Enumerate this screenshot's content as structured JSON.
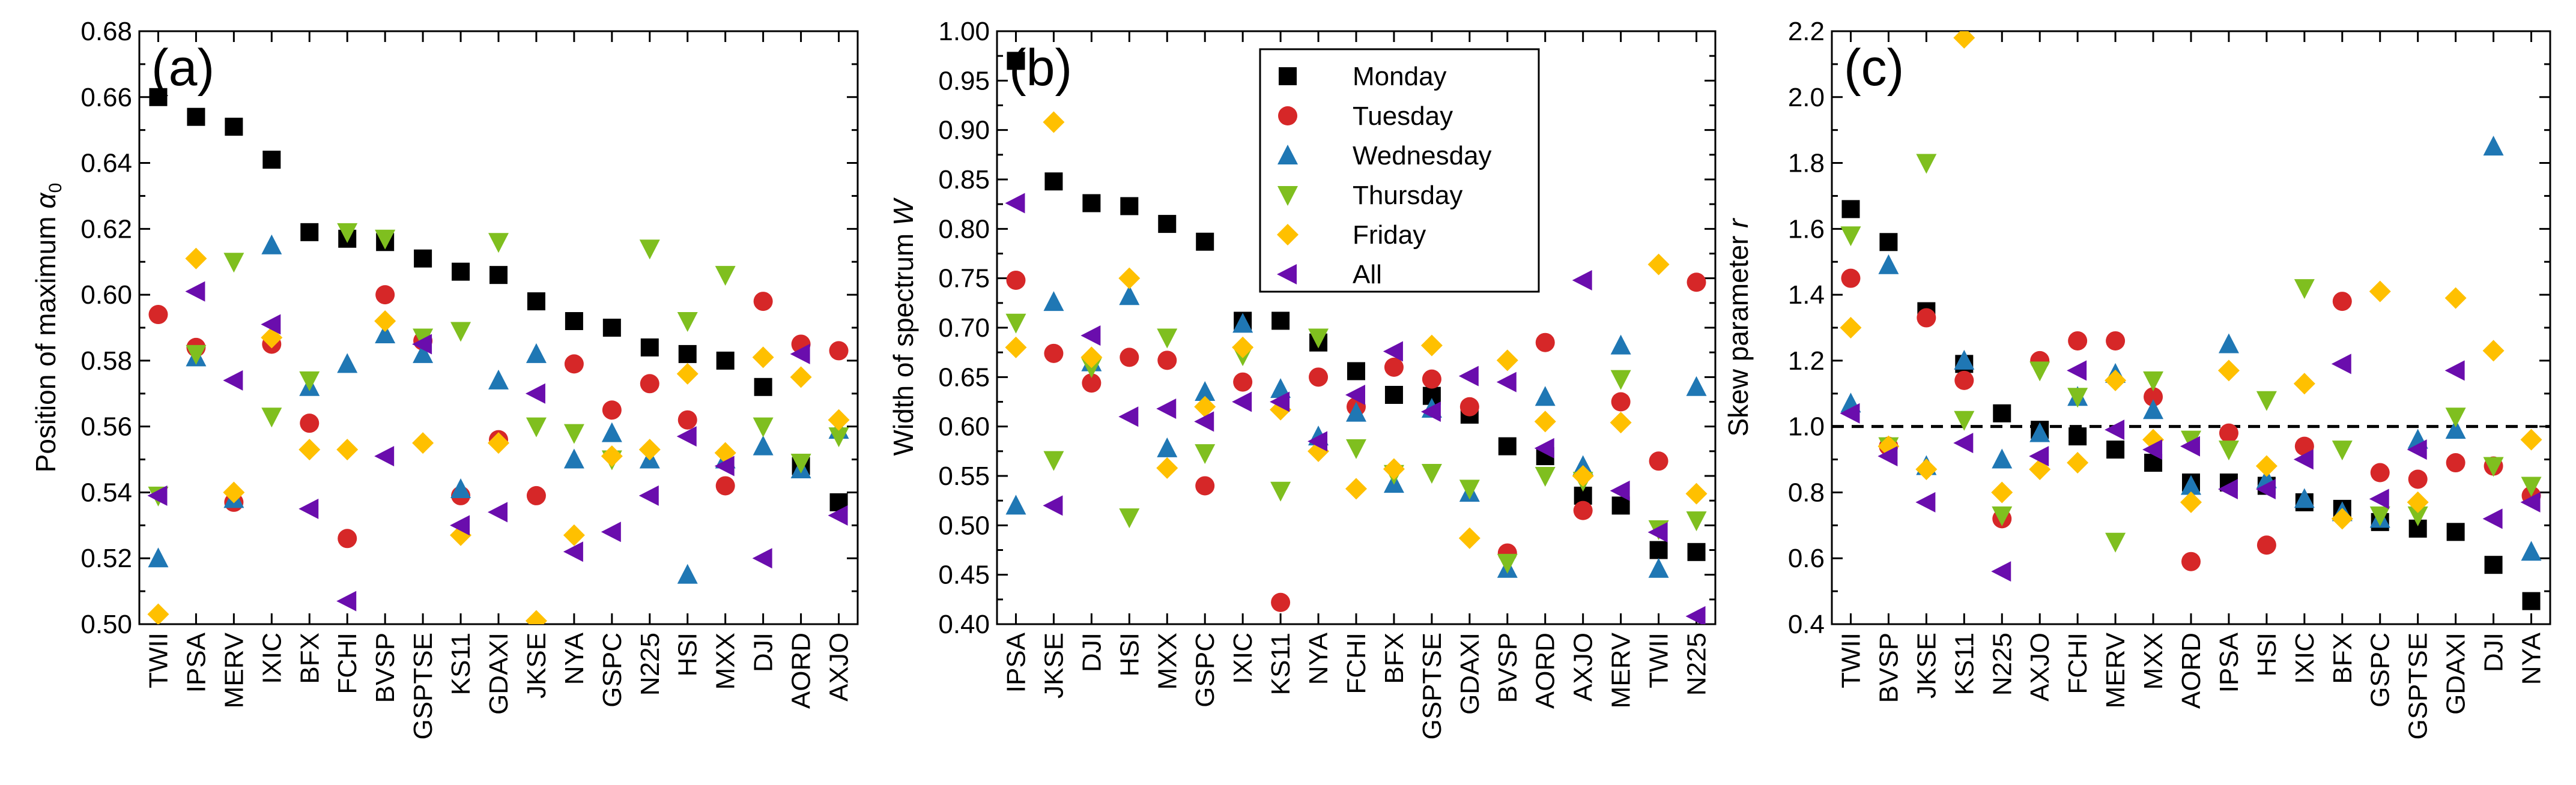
{
  "series_styles": [
    {
      "name": "Monday",
      "color": "#000000",
      "marker": "square"
    },
    {
      "name": "Tuesday",
      "color": "#d62728",
      "marker": "circle"
    },
    {
      "name": "Wednesday",
      "color": "#1f77b4",
      "marker": "triangle-up"
    },
    {
      "name": "Thursday",
      "color": "#7fbf1f",
      "marker": "triangle-down"
    },
    {
      "name": "Friday",
      "color": "#ffc000",
      "marker": "diamond"
    },
    {
      "name": "All",
      "color": "#6a0dad",
      "marker": "triangle-left"
    }
  ],
  "chart_data": [
    {
      "type": "scatter",
      "panel_label": "(a)",
      "ylabel_main": "Position of maximum ",
      "ylabel_symbol": "α",
      "ylabel_sub": "0",
      "ylim": [
        0.5,
        0.68
      ],
      "yticks": [
        0.5,
        0.52,
        0.54,
        0.56,
        0.58,
        0.6,
        0.62,
        0.64,
        0.66,
        0.68
      ],
      "tick_decimals": 2,
      "categories": [
        "TWII",
        "IPSA",
        "MERV",
        "IXIC",
        "BFX",
        "FCHI",
        "BVSP",
        "GSPTSE",
        "KS11",
        "GDAXI",
        "JKSE",
        "NYA",
        "GSPC",
        "N225",
        "HSI",
        "MXX",
        "DJI",
        "AORD",
        "AXJO"
      ],
      "series": [
        {
          "name": "Monday",
          "values": [
            0.66,
            0.654,
            0.651,
            0.641,
            0.619,
            0.617,
            0.616,
            0.611,
            0.607,
            0.606,
            0.598,
            0.592,
            0.59,
            0.584,
            0.582,
            0.58,
            0.572,
            0.548,
            0.537
          ]
        },
        {
          "name": "Tuesday",
          "values": [
            0.594,
            0.584,
            0.537,
            0.585,
            0.561,
            0.526,
            0.6,
            0.586,
            0.539,
            0.556,
            0.539,
            0.579,
            0.565,
            0.573,
            0.562,
            0.542,
            0.598,
            0.585,
            0.583
          ]
        },
        {
          "name": "Wednesday",
          "values": [
            0.52,
            0.581,
            0.538,
            0.615,
            0.572,
            0.579,
            0.588,
            0.582,
            0.541,
            0.574,
            0.582,
            0.55,
            0.558,
            0.55,
            0.515,
            0.55,
            0.554,
            0.547,
            0.559
          ]
        },
        {
          "name": "Thursday",
          "values": [
            0.539,
            0.582,
            0.61,
            0.563,
            0.574,
            0.619,
            0.617,
            0.587,
            0.589,
            0.616,
            0.56,
            0.558,
            0.55,
            0.614,
            0.592,
            0.606,
            0.56,
            0.549,
            0.557
          ]
        },
        {
          "name": "Friday",
          "values": [
            0.503,
            0.611,
            0.54,
            0.587,
            0.553,
            0.553,
            0.592,
            0.555,
            0.527,
            0.555,
            0.501,
            0.527,
            0.551,
            0.553,
            0.576,
            0.552,
            0.581,
            0.575,
            0.562
          ]
        },
        {
          "name": "All",
          "values": [
            0.539,
            0.601,
            0.574,
            0.591,
            0.535,
            0.507,
            0.551,
            0.585,
            0.53,
            0.534,
            0.57,
            0.522,
            0.528,
            0.539,
            0.557,
            0.548,
            0.52,
            0.582,
            0.533
          ]
        }
      ],
      "show_legend": false
    },
    {
      "type": "scatter",
      "panel_label": "(b)",
      "ylabel_main": "Width of spectrum ",
      "ylabel_symbol": "W",
      "ylabel_sub": "",
      "ylim": [
        0.4,
        1.0
      ],
      "yticks": [
        0.4,
        0.45,
        0.5,
        0.55,
        0.6,
        0.65,
        0.7,
        0.75,
        0.8,
        0.85,
        0.9,
        0.95,
        1.0
      ],
      "tick_decimals": 2,
      "categories": [
        "IPSA",
        "JKSE",
        "DJI",
        "HSI",
        "MXX",
        "GSPC",
        "IXIC",
        "KS11",
        "NYA",
        "FCHI",
        "BFX",
        "GSPTSE",
        "GDAXI",
        "BVSP",
        "AORD",
        "AXJO",
        "MERV",
        "TWII",
        "N225"
      ],
      "series": [
        {
          "name": "Monday",
          "values": [
            0.97,
            0.848,
            0.826,
            0.823,
            0.805,
            0.787,
            0.707,
            0.707,
            0.685,
            0.656,
            0.632,
            0.631,
            0.612,
            0.58,
            0.57,
            0.53,
            0.52,
            0.475,
            0.473
          ]
        },
        {
          "name": "Tuesday",
          "values": [
            0.748,
            0.674,
            0.644,
            0.67,
            0.667,
            0.54,
            0.645,
            0.422,
            0.65,
            0.62,
            0.66,
            0.648,
            0.62,
            0.472,
            0.685,
            0.515,
            0.625,
            0.565,
            0.746
          ]
        },
        {
          "name": "Wednesday",
          "values": [
            0.52,
            0.726,
            0.665,
            0.732,
            0.578,
            0.635,
            0.704,
            0.638,
            0.59,
            0.614,
            0.542,
            0.618,
            0.533,
            0.456,
            0.63,
            0.56,
            0.682,
            0.456,
            0.64
          ]
        },
        {
          "name": "Thursday",
          "values": [
            0.705,
            0.566,
            0.66,
            0.508,
            0.69,
            0.573,
            0.672,
            0.535,
            0.69,
            0.578,
            0.552,
            0.553,
            0.537,
            0.462,
            0.55,
            0.545,
            0.648,
            0.496,
            0.505
          ]
        },
        {
          "name": "Friday",
          "values": [
            0.68,
            0.908,
            0.67,
            0.75,
            0.558,
            0.62,
            0.68,
            0.617,
            0.575,
            0.537,
            0.557,
            0.682,
            0.487,
            0.667,
            0.605,
            0.55,
            0.604,
            0.764,
            0.532
          ]
        },
        {
          "name": "All",
          "values": [
            0.826,
            0.52,
            0.692,
            0.61,
            0.618,
            0.605,
            0.625,
            0.625,
            0.585,
            0.632,
            0.676,
            0.615,
            0.651,
            0.645,
            0.578,
            0.748,
            0.535,
            0.493,
            0.408
          ]
        }
      ],
      "show_legend": true,
      "legend_location": "top-right"
    },
    {
      "type": "scatter",
      "panel_label": "(c)",
      "ylabel_main": "Skew parameter ",
      "ylabel_symbol": "r",
      "ylabel_sub": "",
      "ylim": [
        0.4,
        2.2
      ],
      "yticks": [
        0.4,
        0.6,
        0.8,
        1.0,
        1.2,
        1.4,
        1.6,
        1.8,
        2.0,
        2.2
      ],
      "tick_decimals": 1,
      "reference_line": 1.0,
      "categories": [
        "TWII",
        "BVSP",
        "JKSE",
        "KS11",
        "N225",
        "AXJO",
        "FCHI",
        "MERV",
        "MXX",
        "AORD",
        "IPSA",
        "HSI",
        "IXIC",
        "BFX",
        "GSPC",
        "GSPTSE",
        "GDAXI",
        "DJI",
        "NYA"
      ],
      "series": [
        {
          "name": "Monday",
          "values": [
            1.66,
            1.56,
            1.35,
            1.19,
            1.04,
            0.99,
            0.97,
            0.93,
            0.89,
            0.83,
            0.83,
            0.82,
            0.77,
            0.75,
            0.71,
            0.69,
            0.68,
            0.58,
            0.47
          ]
        },
        {
          "name": "Tuesday",
          "values": [
            1.45,
            0.94,
            1.33,
            1.14,
            0.72,
            1.2,
            1.26,
            1.26,
            1.09,
            0.59,
            0.98,
            0.64,
            0.94,
            1.38,
            0.86,
            0.84,
            0.89,
            0.88,
            0.79
          ]
        },
        {
          "name": "Wednesday",
          "values": [
            1.07,
            1.49,
            0.88,
            1.2,
            0.9,
            0.98,
            1.09,
            1.16,
            1.05,
            0.82,
            1.25,
            0.84,
            0.78,
            0.74,
            0.72,
            0.96,
            0.99,
            1.85,
            0.62
          ]
        },
        {
          "name": "Thursday",
          "values": [
            1.58,
            0.94,
            1.8,
            1.02,
            0.73,
            1.17,
            1.09,
            0.65,
            1.14,
            0.96,
            0.93,
            1.08,
            1.42,
            0.93,
            0.73,
            0.73,
            1.03,
            0.88,
            0.82
          ]
        },
        {
          "name": "Friday",
          "values": [
            1.3,
            0.94,
            0.87,
            2.18,
            0.8,
            0.87,
            0.89,
            1.14,
            0.96,
            0.77,
            1.17,
            0.88,
            1.13,
            0.72,
            1.41,
            0.77,
            1.39,
            1.23,
            0.96
          ]
        },
        {
          "name": "All",
          "values": [
            1.04,
            0.91,
            0.77,
            0.95,
            0.56,
            0.91,
            1.17,
            0.99,
            0.93,
            0.94,
            0.81,
            0.81,
            0.9,
            1.19,
            0.78,
            0.93,
            1.17,
            0.72,
            0.77
          ]
        }
      ],
      "show_legend": false
    }
  ]
}
